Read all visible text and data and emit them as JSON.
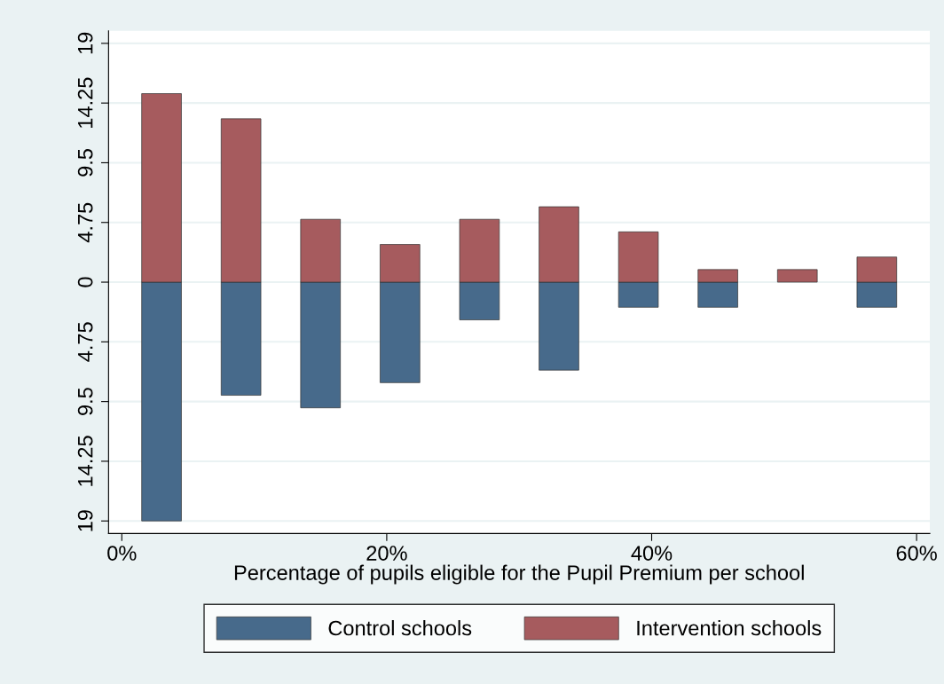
{
  "chart_data": {
    "type": "bar",
    "xlabel": "Percentage of pupils eligible for the Pupil Premium per school",
    "x": [
      3,
      9,
      15,
      21,
      27,
      33,
      39,
      45,
      51,
      57
    ],
    "series": [
      {
        "name": "Control schools",
        "color": "#476a8b",
        "values": [
          -19,
          -9,
          -10,
          -8,
          -3,
          -7,
          -2,
          -2,
          null,
          -2
        ]
      },
      {
        "name": "Intervention schools",
        "color": "#a65b5e",
        "values": [
          15,
          13,
          5,
          3,
          5,
          6,
          4,
          1,
          1,
          2
        ]
      }
    ],
    "xlim": [
      -1,
      61
    ],
    "xticks": [
      {
        "value": 0,
        "label": "0%"
      },
      {
        "value": 20,
        "label": "20%"
      },
      {
        "value": 40,
        "label": "40%"
      },
      {
        "value": 60,
        "label": "60%"
      }
    ],
    "ylim": [
      -20,
      20
    ],
    "yticks": [
      {
        "value": -19,
        "label": "19"
      },
      {
        "value": -14.25,
        "label": "14.25"
      },
      {
        "value": -9.5,
        "label": "9.5"
      },
      {
        "value": -4.75,
        "label": "4.75"
      },
      0,
      4.75,
      9.5,
      14.25,
      19
    ],
    "grid": "y",
    "legend": "bottom",
    "stacked": true
  }
}
